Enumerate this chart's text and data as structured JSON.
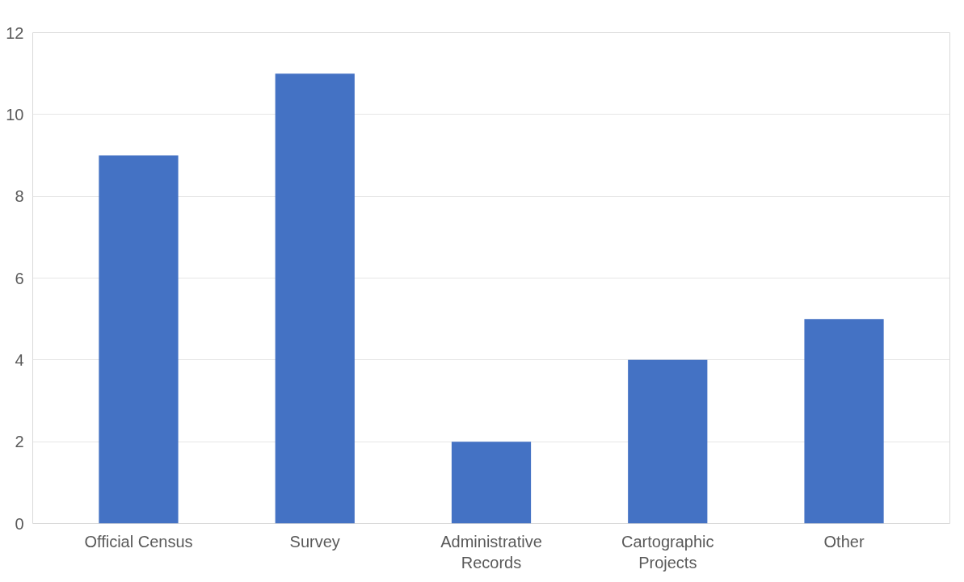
{
  "chart_data": {
    "type": "bar",
    "categories": [
      "Official Census",
      "Survey",
      "Administrative\nRecords",
      "Cartographic\nProjects",
      "Other"
    ],
    "values": [
      9,
      11,
      2,
      4,
      5
    ],
    "color": "#4472c4",
    "ylim": [
      0,
      12
    ],
    "yticks": [
      0,
      2,
      4,
      6,
      8,
      10,
      12
    ],
    "grid": "y"
  }
}
